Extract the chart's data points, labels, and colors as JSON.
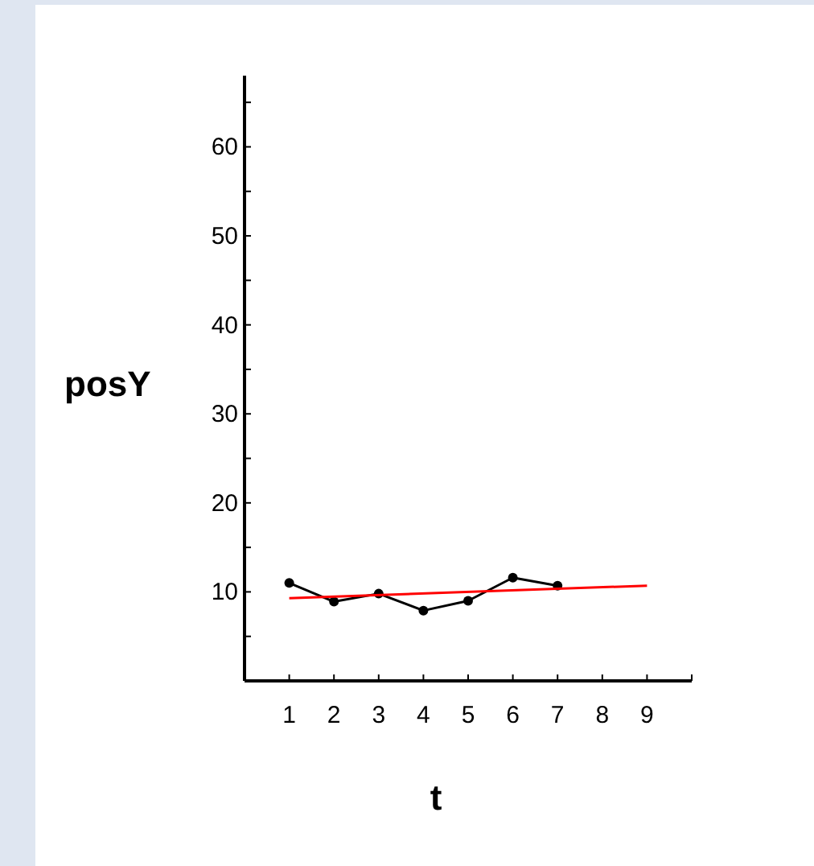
{
  "chart_data": {
    "type": "line",
    "xlabel": "t",
    "ylabel": "posY",
    "xlim": [
      0,
      10
    ],
    "ylim": [
      0,
      68
    ],
    "xticks": [
      1,
      2,
      3,
      4,
      5,
      6,
      7,
      8,
      9,
      {
        "value": 10,
        "label": null
      }
    ],
    "yticks": [
      {
        "value": 5,
        "label": null
      },
      10,
      {
        "value": 15,
        "label": null
      },
      20,
      {
        "value": 25,
        "label": null
      },
      30,
      {
        "value": 35,
        "label": null
      },
      40,
      {
        "value": 45,
        "label": null
      },
      50,
      {
        "value": 55,
        "label": null
      },
      60,
      {
        "value": 65,
        "label": null
      }
    ],
    "grid": false,
    "series": [
      {
        "color": "#000000",
        "marker": "circle",
        "x": [
          1,
          2,
          3,
          4,
          5,
          6,
          7
        ],
        "values": [
          11,
          8.9,
          9.8,
          7.9,
          9,
          11.6,
          10.7
        ]
      },
      {
        "color": "#ff0000",
        "marker": "none",
        "x": [
          1,
          9
        ],
        "values": [
          9.3,
          10.7
        ]
      }
    ]
  }
}
